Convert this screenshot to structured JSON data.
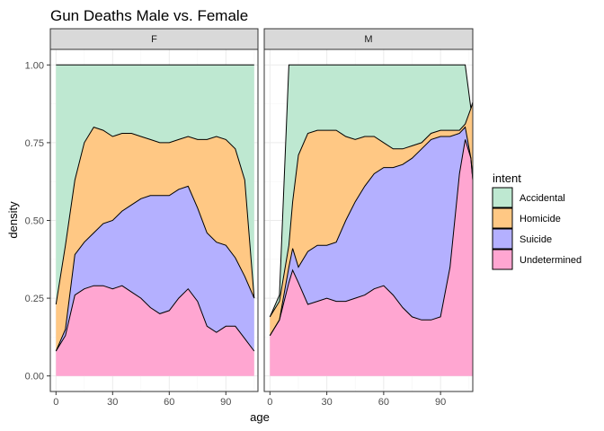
{
  "chart_data": {
    "type": "area",
    "title": "Gun Deaths Male vs. Female",
    "xlabel": "age",
    "ylabel": "density",
    "xlim": [
      -3,
      107
    ],
    "ylim": [
      -0.05,
      1.05
    ],
    "x_ticks": [
      "0",
      "30",
      "60",
      "90"
    ],
    "y_ticks": [
      "0.00",
      "0.25",
      "0.50",
      "0.75",
      "1.00"
    ],
    "legend": {
      "title": "intent",
      "position": "right",
      "items": [
        {
          "label": "Accidental",
          "color": "#BEE8D1"
        },
        {
          "label": "Homicide",
          "color": "#FFC884"
        },
        {
          "label": "Suicide",
          "color": "#B4B0FF"
        },
        {
          "label": "Undetermined",
          "color": "#FFA6D1"
        }
      ]
    },
    "stack_order": [
      "Undetermined",
      "Suicide",
      "Homicide",
      "Accidental"
    ],
    "grid": true,
    "panels": [
      {
        "label": "F",
        "x": [
          0,
          5,
          10,
          15,
          20,
          25,
          30,
          35,
          40,
          45,
          50,
          55,
          60,
          65,
          70,
          75,
          80,
          85,
          90,
          95,
          100,
          105
        ],
        "cumulative": {
          "Undetermined": [
            0.08,
            0.13,
            0.26,
            0.28,
            0.29,
            0.29,
            0.28,
            0.29,
            0.27,
            0.25,
            0.22,
            0.2,
            0.21,
            0.25,
            0.28,
            0.24,
            0.16,
            0.14,
            0.16,
            0.16,
            0.12,
            0.08
          ],
          "Suicide": [
            0.08,
            0.15,
            0.39,
            0.43,
            0.46,
            0.49,
            0.5,
            0.53,
            0.55,
            0.57,
            0.58,
            0.58,
            0.58,
            0.6,
            0.61,
            0.54,
            0.46,
            0.43,
            0.42,
            0.38,
            0.32,
            0.25
          ],
          "Homicide": [
            0.23,
            0.42,
            0.63,
            0.75,
            0.8,
            0.79,
            0.77,
            0.78,
            0.78,
            0.77,
            0.76,
            0.75,
            0.75,
            0.76,
            0.77,
            0.76,
            0.76,
            0.77,
            0.76,
            0.73,
            0.63,
            0.25
          ],
          "Accidental": [
            1.0,
            1.0,
            1.0,
            1.0,
            1.0,
            1.0,
            1.0,
            1.0,
            1.0,
            1.0,
            1.0,
            1.0,
            1.0,
            1.0,
            1.0,
            1.0,
            1.0,
            1.0,
            1.0,
            1.0,
            1.0,
            1.0
          ]
        }
      },
      {
        "label": "M",
        "x": [
          0,
          5,
          10,
          12,
          15,
          20,
          25,
          30,
          35,
          40,
          45,
          50,
          55,
          60,
          65,
          70,
          75,
          80,
          85,
          90,
          95,
          100,
          103,
          106,
          107
        ],
        "cumulative": {
          "Undetermined": [
            0.13,
            0.18,
            0.3,
            0.34,
            0.3,
            0.23,
            0.24,
            0.25,
            0.24,
            0.24,
            0.25,
            0.26,
            0.28,
            0.29,
            0.26,
            0.22,
            0.19,
            0.18,
            0.18,
            0.19,
            0.35,
            0.65,
            0.76,
            0.7,
            0.63
          ],
          "Suicide": [
            0.13,
            0.18,
            0.35,
            0.41,
            0.35,
            0.4,
            0.42,
            0.42,
            0.43,
            0.5,
            0.56,
            0.61,
            0.65,
            0.67,
            0.67,
            0.68,
            0.7,
            0.73,
            0.76,
            0.77,
            0.77,
            0.78,
            0.8,
            0.7,
            0.63
          ],
          "Homicide": [
            0.19,
            0.24,
            0.42,
            0.56,
            0.71,
            0.78,
            0.79,
            0.79,
            0.79,
            0.77,
            0.76,
            0.77,
            0.77,
            0.75,
            0.73,
            0.73,
            0.74,
            0.75,
            0.78,
            0.79,
            0.79,
            0.79,
            0.81,
            0.86,
            0.88
          ],
          "Accidental": [
            0.19,
            0.26,
            1.0,
            1.0,
            1.0,
            1.0,
            1.0,
            1.0,
            1.0,
            1.0,
            1.0,
            1.0,
            1.0,
            1.0,
            1.0,
            1.0,
            1.0,
            1.0,
            1.0,
            1.0,
            1.0,
            1.0,
            1.0,
            0.86,
            0.88
          ]
        }
      }
    ]
  }
}
